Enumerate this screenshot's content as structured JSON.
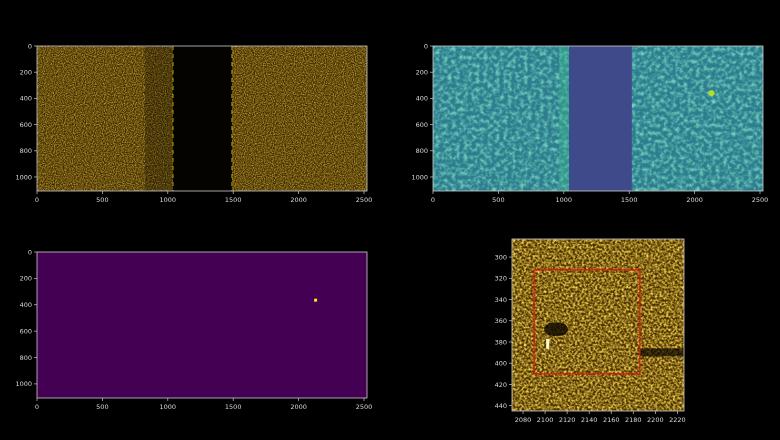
{
  "chart_data": [
    {
      "type": "heatmap",
      "colormap": "afmhot",
      "xlim": [
        0,
        2523
      ],
      "ylim": [
        1107,
        0
      ],
      "xticks": [
        0,
        500,
        1000,
        1500,
        2000,
        2500
      ],
      "yticks": [
        0,
        200,
        400,
        600,
        800,
        1000
      ],
      "dark_band_x": [
        1040,
        1490
      ],
      "dashed_lines_x": [
        1040,
        1490
      ],
      "dashed_line_color": "#c8c800"
    },
    {
      "type": "heatmap",
      "colormap": "viridis",
      "xlim": [
        0,
        2523
      ],
      "ylim": [
        1107,
        0
      ],
      "xticks": [
        0,
        500,
        1000,
        1500,
        2000,
        2500
      ],
      "yticks": [
        0,
        200,
        400,
        600,
        800,
        1000
      ],
      "band_x": [
        1040,
        1520
      ],
      "hotspot": {
        "x": 2130,
        "y": 360
      }
    },
    {
      "type": "heatmap",
      "colormap": "viridis",
      "xlim": [
        0,
        2523
      ],
      "ylim": [
        1107,
        0
      ],
      "xticks": [
        0,
        500,
        1000,
        1500,
        2000,
        2500
      ],
      "yticks": [
        0,
        200,
        400,
        600,
        800,
        1000
      ],
      "background_color": "#440154",
      "hotspot": {
        "x": 2130,
        "y": 365,
        "color": "#fde725"
      }
    },
    {
      "type": "heatmap",
      "colormap": "afmhot",
      "xlim": [
        2070,
        2226
      ],
      "ylim": [
        445,
        283
      ],
      "xticks": [
        2080,
        2100,
        2120,
        2140,
        2160,
        2180,
        2200,
        2220
      ],
      "yticks": [
        300,
        320,
        340,
        360,
        380,
        400,
        420,
        440
      ],
      "box": {
        "x": [
          2090,
          2186
        ],
        "y": [
          312,
          410
        ],
        "color": "#e01010"
      }
    }
  ]
}
